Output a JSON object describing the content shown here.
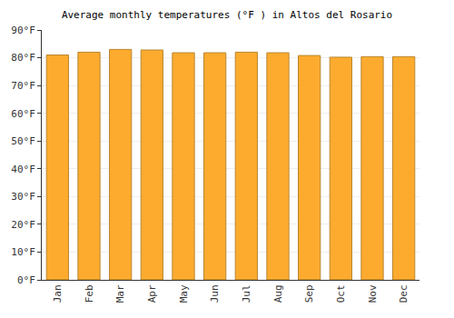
{
  "chart_data": {
    "type": "bar",
    "title": "Average monthly temperatures (°F ) in Altos del Rosario",
    "categories": [
      "Jan",
      "Feb",
      "Mar",
      "Apr",
      "May",
      "Jun",
      "Jul",
      "Aug",
      "Sep",
      "Oct",
      "Nov",
      "Dec"
    ],
    "values": [
      81,
      82,
      83,
      82.8,
      81.8,
      81.8,
      82,
      81.8,
      80.8,
      80.2,
      80.4,
      80.4
    ],
    "color": "#fdab2f",
    "ylim": [
      0,
      90
    ],
    "yticks": [
      {
        "value": 0,
        "label": "0°F"
      },
      {
        "value": 10,
        "label": "10°F"
      },
      {
        "value": 20,
        "label": "20°F"
      },
      {
        "value": 30,
        "label": "30°F"
      },
      {
        "value": 40,
        "label": "40°F"
      },
      {
        "value": 50,
        "label": "50°F"
      },
      {
        "value": 60,
        "label": "60°F"
      },
      {
        "value": 70,
        "label": "70°F"
      },
      {
        "value": 80,
        "label": "80°F"
      },
      {
        "value": 90,
        "label": "90°F"
      }
    ],
    "grid": true
  }
}
